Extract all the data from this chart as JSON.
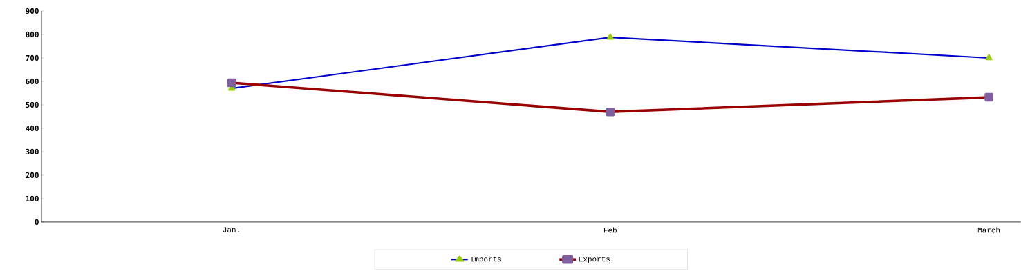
{
  "chart_data": {
    "type": "line",
    "categories": [
      "Jan.",
      "Feb",
      "March"
    ],
    "series": [
      {
        "name": "Imports",
        "color": "#0000cc",
        "marker": "triangle",
        "values": [
          570,
          788,
          700
        ]
      },
      {
        "name": "Exports",
        "color": "#990000",
        "marker": "square",
        "values": [
          594,
          470,
          532
        ]
      }
    ],
    "ylim": [
      0,
      900
    ],
    "yticks": [
      0,
      100,
      200,
      300,
      400,
      500,
      600,
      700,
      800,
      900
    ],
    "grid": false,
    "legend": "bottom",
    "line_style": "solid"
  }
}
